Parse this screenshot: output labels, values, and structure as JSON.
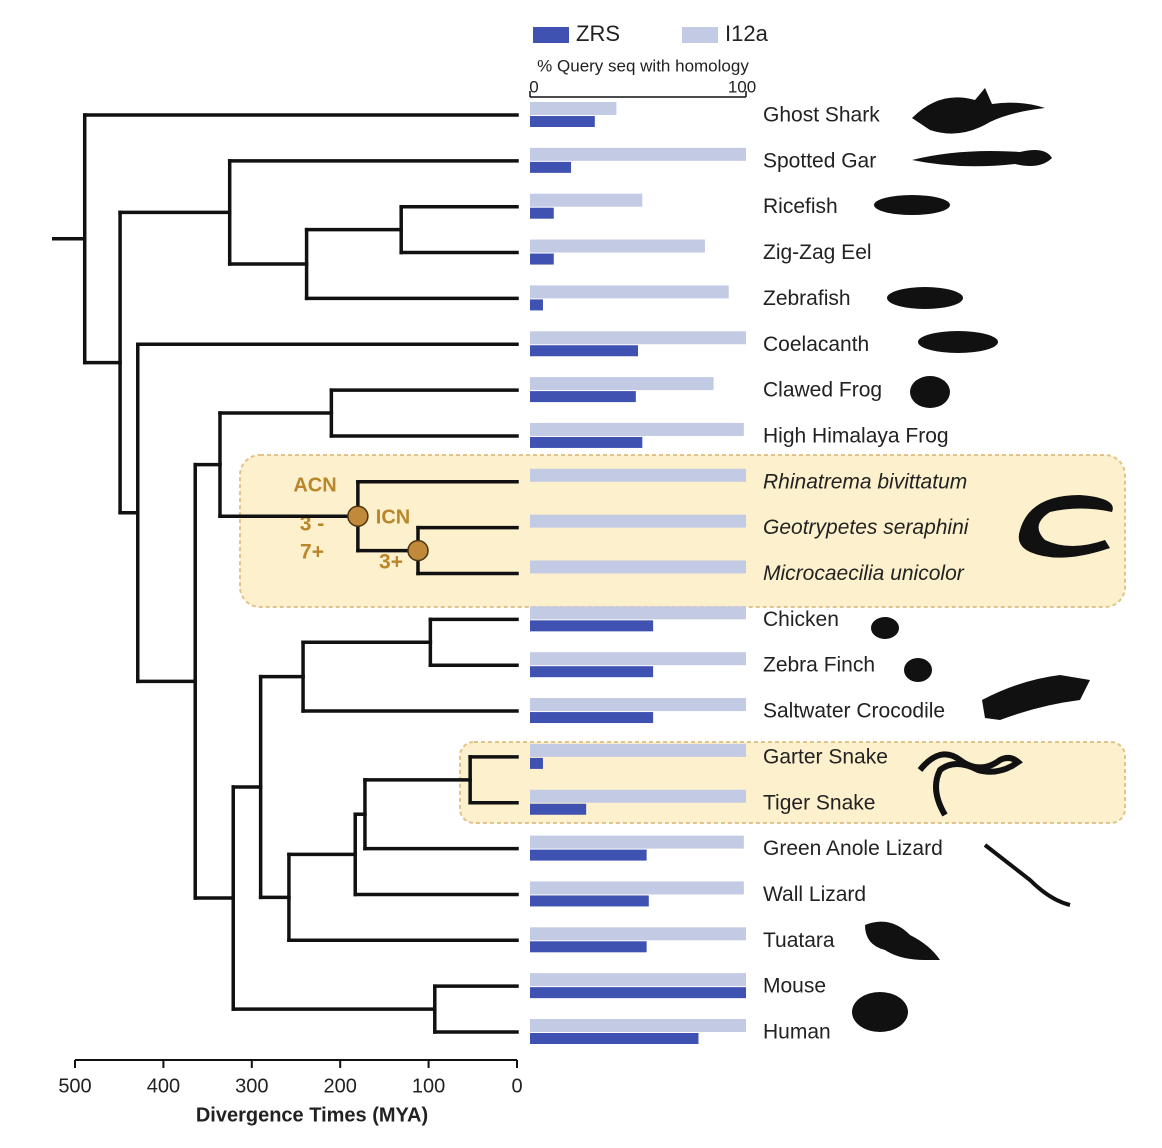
{
  "chart_data": [
    {
      "type": "tree",
      "xlabel": "Divergence Times (MYA)",
      "xlim": [
        500,
        0
      ],
      "xticks": [
        500,
        400,
        300,
        200,
        100,
        0
      ],
      "annotations": [
        "ACN",
        "3 -",
        "7+",
        "ICN",
        "3+"
      ],
      "root": {
        "age": 489,
        "children": [
          "Ghost Shark",
          {
            "age": 449,
            "children": [
              {
                "age": 325,
                "children": [
                  "Spotted Gar",
                  {
                    "age": 238,
                    "children": [
                      {
                        "age": 131,
                        "children": [
                          "Ricefish",
                          "Zig-Zag Eel"
                        ]
                      },
                      "Zebrafish"
                    ]
                  }
                ]
              },
              {
                "age": 429,
                "children": [
                  "Coelacanth",
                  {
                    "age": 364,
                    "children": [
                      {
                        "age": 336,
                        "children": [
                          {
                            "age": 210,
                            "children": [
                              "Clawed Frog",
                              "High Himalaya Frog"
                            ]
                          },
                          {
                            "age": 180,
                            "children": [
                              "Rhinatrema bivittatum",
                              {
                                "age": 112,
                                "children": [
                                  "Geotrypetes seraphini",
                                  "Microcaecilia unicolor"
                                ]
                              }
                            ]
                          }
                        ]
                      },
                      {
                        "age": 321,
                        "children": [
                          {
                            "age": 290,
                            "children": [
                              {
                                "age": 242,
                                "children": [
                                  {
                                    "age": 98,
                                    "children": [
                                      "Chicken",
                                      "Zebra Finch"
                                    ]
                                  },
                                  "Saltwater Crocodile"
                                ]
                              },
                              {
                                "age": 258,
                                "children": [
                                  {
                                    "age": 183,
                                    "children": [
                                      {
                                        "age": 172,
                                        "children": [
                                          {
                                            "age": 53,
                                            "children": [
                                              "Garter Snake",
                                              "Tiger Snake"
                                            ]
                                          },
                                          "Green Anole Lizard"
                                        ]
                                      },
                                      "Wall Lizard"
                                    ]
                                  },
                                  "Tuatara"
                                ]
                              }
                            ]
                          },
                          {
                            "age": 93,
                            "children": [
                              "Mouse",
                              "Human"
                            ]
                          }
                        ]
                      }
                    ]
                  }
                ]
              }
            ]
          }
        ]
      }
    },
    {
      "type": "bar",
      "title": "% Query seq with homology",
      "xlim": [
        0,
        100
      ],
      "xticks": [
        0,
        100
      ],
      "categories": [
        "Ghost Shark",
        "Spotted Gar",
        "Ricefish",
        "Zig-Zag Eel",
        "Zebrafish",
        "Coelacanth",
        "Clawed Frog",
        "High Himalaya Frog",
        "Rhinatrema bivittatum",
        "Geotrypetes seraphini",
        "Microcaecilia unicolor",
        "Chicken",
        "Zebra Finch",
        "Saltwater Crocodile",
        "Garter Snake",
        "Tiger Snake",
        "Green Anole Lizard",
        "Wall Lizard",
        "Tuatara",
        "Mouse",
        "Human"
      ],
      "series": [
        {
          "name": "ZRS",
          "color": "#3f51b1",
          "values": [
            30,
            19,
            11,
            11,
            6,
            50,
            49,
            52,
            0,
            0,
            0,
            57,
            57,
            57,
            6,
            26,
            54,
            55,
            54,
            100,
            78
          ]
        },
        {
          "name": "I12a",
          "color": "#c3cae3",
          "values": [
            40,
            100,
            52,
            81,
            92,
            100,
            85,
            99,
            100,
            100,
            100,
            100,
            100,
            100,
            100,
            100,
            99,
            99,
            100,
            100,
            100
          ]
        }
      ]
    }
  ]
}
